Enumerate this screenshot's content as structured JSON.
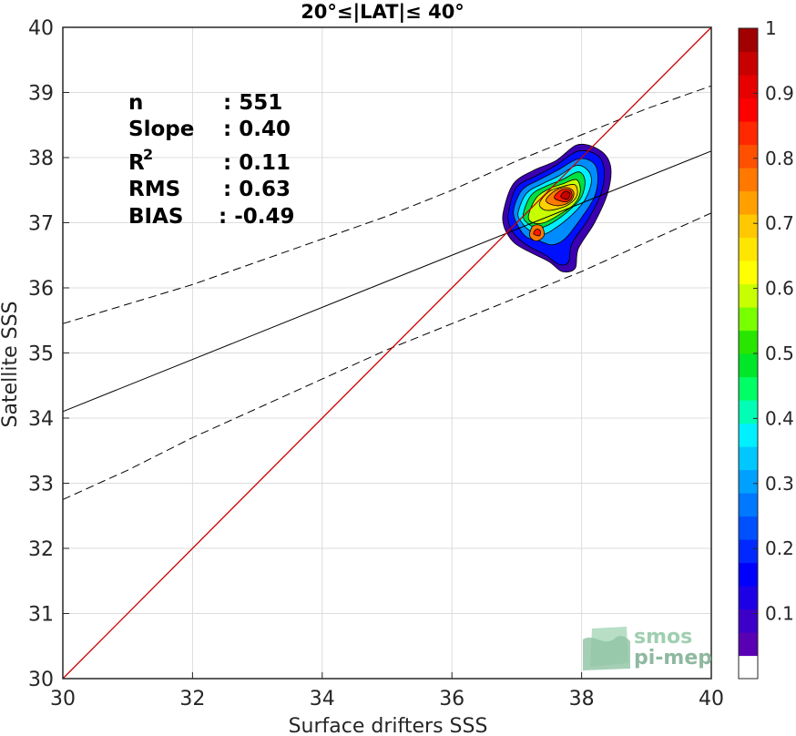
{
  "chart_data": {
    "type": "scatter",
    "title": "20°≤|LAT|≤ 40°",
    "xlabel": "Surface drifters SSS",
    "ylabel": "Satellite SSS",
    "xlim": [
      30,
      40
    ],
    "ylim": [
      30,
      40
    ],
    "xticks": [
      30,
      32,
      34,
      36,
      38,
      40
    ],
    "yticks": [
      30,
      31,
      32,
      33,
      34,
      35,
      36,
      37,
      38,
      39,
      40
    ],
    "grid": true,
    "stats": [
      {
        "label": "n",
        "value": ": 551"
      },
      {
        "label": "Slope",
        "value": ": 0.40"
      },
      {
        "label": "R",
        "sup": "2",
        "value": ": 0.11"
      },
      {
        "label": "RMS",
        "value": ": 0.63"
      },
      {
        "label": "BIAS",
        "value": ": -0.49"
      }
    ],
    "one_to_one_line": {
      "x": [
        30,
        40
      ],
      "y": [
        30,
        40
      ],
      "color": "#cc0000"
    },
    "regression_line": {
      "x": [
        30,
        40
      ],
      "y": [
        34.1,
        38.1
      ],
      "color": "#000000"
    },
    "confidence_upper": {
      "x": [
        30,
        31,
        32,
        33,
        34,
        35,
        36,
        37,
        38,
        39,
        40
      ],
      "y": [
        35.45,
        35.75,
        36.05,
        36.4,
        36.75,
        37.1,
        37.5,
        37.95,
        38.35,
        38.75,
        39.1
      ]
    },
    "confidence_lower": {
      "x": [
        30,
        31,
        32,
        33,
        34,
        35,
        36,
        37,
        38,
        39,
        40
      ],
      "y": [
        32.75,
        33.2,
        33.7,
        34.15,
        34.6,
        35.05,
        35.45,
        35.85,
        36.25,
        36.7,
        37.15
      ]
    },
    "density_contours": [
      {
        "level": 0.05,
        "color": "#3b00b0",
        "points": [
          [
            36.8,
            37.2
          ],
          [
            36.95,
            37.6
          ],
          [
            37.25,
            37.8
          ],
          [
            37.6,
            37.95
          ],
          [
            37.95,
            38.2
          ],
          [
            38.3,
            38.1
          ],
          [
            38.45,
            37.85
          ],
          [
            38.4,
            37.45
          ],
          [
            38.2,
            37.0
          ],
          [
            37.95,
            36.6
          ],
          [
            37.9,
            36.3
          ],
          [
            37.7,
            36.25
          ],
          [
            37.5,
            36.4
          ],
          [
            37.2,
            36.55
          ],
          [
            36.95,
            36.7
          ],
          [
            36.8,
            36.95
          ]
        ]
      },
      {
        "level": 0.15,
        "color": "#0010ff",
        "points": [
          [
            36.88,
            37.2
          ],
          [
            37.0,
            37.55
          ],
          [
            37.3,
            37.72
          ],
          [
            37.6,
            37.88
          ],
          [
            37.95,
            38.1
          ],
          [
            38.25,
            38.03
          ],
          [
            38.35,
            37.8
          ],
          [
            38.3,
            37.45
          ],
          [
            38.1,
            37.05
          ],
          [
            37.85,
            36.68
          ],
          [
            37.8,
            36.4
          ],
          [
            37.65,
            36.36
          ],
          [
            37.45,
            36.5
          ],
          [
            37.2,
            36.63
          ],
          [
            37.0,
            36.78
          ],
          [
            36.88,
            36.98
          ]
        ]
      },
      {
        "level": 0.25,
        "color": "#008cff",
        "points": [
          [
            36.95,
            37.18
          ],
          [
            37.08,
            37.5
          ],
          [
            37.35,
            37.66
          ],
          [
            37.62,
            37.8
          ],
          [
            37.95,
            37.98
          ],
          [
            38.18,
            37.92
          ],
          [
            38.25,
            37.72
          ],
          [
            38.2,
            37.4
          ],
          [
            38.0,
            37.08
          ],
          [
            37.75,
            36.76
          ],
          [
            37.55,
            36.66
          ],
          [
            37.35,
            36.72
          ],
          [
            37.15,
            36.78
          ],
          [
            37.02,
            36.95
          ]
        ]
      },
      {
        "level": 0.35,
        "color": "#00f0ff",
        "points": [
          [
            37.02,
            37.15
          ],
          [
            37.15,
            37.45
          ],
          [
            37.4,
            37.6
          ],
          [
            37.65,
            37.72
          ],
          [
            37.92,
            37.88
          ],
          [
            38.1,
            37.8
          ],
          [
            38.15,
            37.62
          ],
          [
            38.05,
            37.35
          ],
          [
            37.85,
            37.12
          ],
          [
            37.6,
            36.92
          ],
          [
            37.4,
            36.82
          ],
          [
            37.2,
            36.88
          ],
          [
            37.08,
            37.0
          ]
        ]
      },
      {
        "level": 0.45,
        "color": "#00e040",
        "points": [
          [
            37.1,
            37.12
          ],
          [
            37.22,
            37.42
          ],
          [
            37.45,
            37.56
          ],
          [
            37.7,
            37.66
          ],
          [
            37.95,
            37.78
          ],
          [
            38.05,
            37.65
          ],
          [
            38.0,
            37.4
          ],
          [
            37.82,
            37.2
          ],
          [
            37.55,
            37.0
          ],
          [
            37.35,
            36.92
          ],
          [
            37.18,
            36.98
          ]
        ]
      },
      {
        "level": 0.55,
        "color": "#c8ff00",
        "points": [
          [
            37.18,
            37.1
          ],
          [
            37.3,
            37.38
          ],
          [
            37.5,
            37.52
          ],
          [
            37.72,
            37.6
          ],
          [
            37.92,
            37.66
          ],
          [
            37.98,
            37.48
          ],
          [
            37.88,
            37.28
          ],
          [
            37.65,
            37.12
          ],
          [
            37.42,
            37.0
          ],
          [
            37.25,
            37.0
          ]
        ]
      },
      {
        "level": 0.65,
        "color": "#ffd000",
        "points": [
          [
            37.35,
            37.3
          ],
          [
            37.5,
            37.48
          ],
          [
            37.72,
            37.56
          ],
          [
            37.9,
            37.58
          ],
          [
            37.93,
            37.42
          ],
          [
            37.8,
            37.28
          ],
          [
            37.58,
            37.2
          ],
          [
            37.42,
            37.2
          ]
        ]
      },
      {
        "level": 0.75,
        "color": "#ff7a00",
        "points": [
          [
            37.45,
            37.34
          ],
          [
            37.6,
            37.5
          ],
          [
            37.78,
            37.54
          ],
          [
            37.88,
            37.46
          ],
          [
            37.82,
            37.32
          ],
          [
            37.62,
            37.26
          ]
        ]
      },
      {
        "level": 0.85,
        "color": "#ff1a00",
        "points": [
          [
            37.58,
            37.38
          ],
          [
            37.68,
            37.5
          ],
          [
            37.82,
            37.5
          ],
          [
            37.85,
            37.4
          ],
          [
            37.76,
            37.32
          ]
        ]
      },
      {
        "level": 0.95,
        "color": "#c80000",
        "points": [
          [
            37.68,
            37.4
          ],
          [
            37.74,
            37.48
          ],
          [
            37.82,
            37.45
          ],
          [
            37.78,
            37.36
          ]
        ]
      },
      {
        "level": 0.75,
        "color": "#ff7a00",
        "points": [
          [
            37.2,
            36.8
          ],
          [
            37.25,
            36.95
          ],
          [
            37.38,
            36.95
          ],
          [
            37.42,
            36.8
          ],
          [
            37.3,
            36.72
          ]
        ]
      },
      {
        "level": 0.9,
        "color": "#ff1a00",
        "points": [
          [
            37.26,
            36.83
          ],
          [
            37.3,
            36.9
          ],
          [
            37.36,
            36.88
          ],
          [
            37.35,
            36.8
          ]
        ]
      }
    ],
    "colorbar": {
      "min": 0,
      "max": 1,
      "ticks": [
        "0.1",
        "0.2",
        "0.3",
        "0.4",
        "0.5",
        "0.6",
        "0.7",
        "0.8",
        "0.9",
        "1"
      ],
      "colors": [
        "#ffffff",
        "#5a00b4",
        "#3c00c8",
        "#1e00e6",
        "#0000ff",
        "#0028ff",
        "#0050ff",
        "#0078ff",
        "#00a0ff",
        "#00c8ff",
        "#00f0ff",
        "#00ffb4",
        "#00ff64",
        "#00e628",
        "#28e600",
        "#78ff00",
        "#c8ff00",
        "#ffff00",
        "#ffe600",
        "#ffc800",
        "#ffa000",
        "#ff7800",
        "#ff5000",
        "#ff2800",
        "#ff0000",
        "#e60000",
        "#c80000",
        "#a00000"
      ]
    },
    "watermark": [
      "smos",
      "pi-mep"
    ]
  }
}
